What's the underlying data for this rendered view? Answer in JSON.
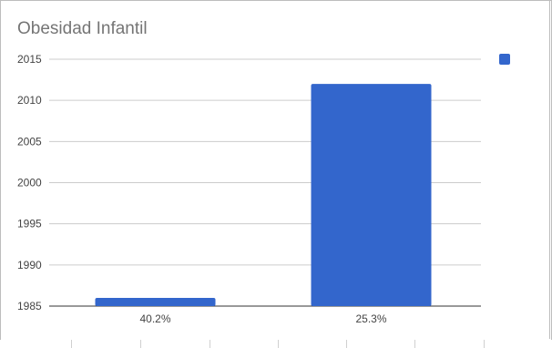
{
  "chart_data": {
    "type": "bar",
    "title": "Obesidad Infantil",
    "categories": [
      "40.2%",
      "25.3%"
    ],
    "series": [
      {
        "values": [
          1986,
          2012
        ],
        "color": "#3366cc"
      }
    ],
    "ylim": [
      1985,
      2015
    ],
    "yticks": [
      1985,
      1990,
      1995,
      2000,
      2005,
      2010,
      2015
    ],
    "grid": true,
    "legend": "right"
  }
}
